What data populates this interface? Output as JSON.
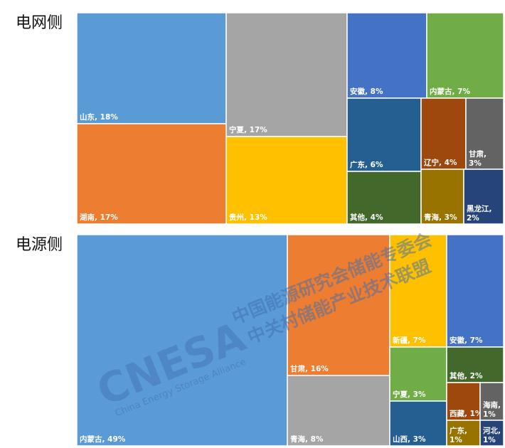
{
  "chart_data": [
    {
      "type": "treemap",
      "title": "电网侧",
      "items": [
        {
          "name": "山东",
          "value": 18,
          "label": "山东, 18%",
          "color": "#5b9bd5"
        },
        {
          "name": "湖南",
          "value": 17,
          "label": "湖南, 17%",
          "color": "#ed7d31"
        },
        {
          "name": "宁夏",
          "value": 17,
          "label": "宁夏, 17%",
          "color": "#a5a5a5"
        },
        {
          "name": "贵州",
          "value": 13,
          "label": "贵州, 13%",
          "color": "#ffc000"
        },
        {
          "name": "安徽",
          "value": 8,
          "label": "安徽, 8%",
          "color": "#4472c4"
        },
        {
          "name": "内蒙古",
          "value": 7,
          "label": "内蒙古, 7%",
          "color": "#70ad47"
        },
        {
          "name": "广东",
          "value": 6,
          "label": "广东, 6%",
          "color": "#255e91"
        },
        {
          "name": "其他",
          "value": 4,
          "label": "其他, 4%",
          "color": "#43682b"
        },
        {
          "name": "辽宁",
          "value": 4,
          "label": "辽宁, 4%",
          "color": "#9e480e"
        },
        {
          "name": "甘肃",
          "value": 3,
          "label": "甘肃, 3%",
          "color": "#636363"
        },
        {
          "name": "青海",
          "value": 3,
          "label": "青海, 3%",
          "color": "#997300"
        },
        {
          "name": "黑龙江",
          "value": 2,
          "label": "黑龙江, 2%",
          "color": "#264478"
        }
      ]
    },
    {
      "type": "treemap",
      "title": "电源侧",
      "items": [
        {
          "name": "内蒙古",
          "value": 49,
          "label": "内蒙古, 49%",
          "color": "#5b9bd5"
        },
        {
          "name": "甘肃",
          "value": 16,
          "label": "甘肃, 16%",
          "color": "#ed7d31"
        },
        {
          "name": "青海",
          "value": 8,
          "label": "青海, 8%",
          "color": "#a5a5a5"
        },
        {
          "name": "新疆",
          "value": 7,
          "label": "新疆, 7%",
          "color": "#ffc000"
        },
        {
          "name": "安徽",
          "value": 7,
          "label": "安徽, 7%",
          "color": "#4472c4"
        },
        {
          "name": "宁夏",
          "value": 3,
          "label": "宁夏, 3%",
          "color": "#70ad47"
        },
        {
          "name": "山西",
          "value": 3,
          "label": "山西, 3%",
          "color": "#255e91"
        },
        {
          "name": "其他",
          "value": 2,
          "label": "其他, 2%",
          "color": "#43682b"
        },
        {
          "name": "西藏",
          "value": 1,
          "label": "西藏, 1%",
          "color": "#9e480e"
        },
        {
          "name": "海南",
          "value": 1,
          "label": "海南, 1%",
          "color": "#636363"
        },
        {
          "name": "广东",
          "value": 1,
          "label": "广东, 1%",
          "color": "#997300"
        },
        {
          "name": "河北",
          "value": 1,
          "label": "河北, 1%",
          "color": "#264478"
        }
      ]
    }
  ],
  "watermark": {
    "logo": "CNESA",
    "subtitle": "China Energy Storage Alliance",
    "line1": "中国能源研究会储能专委会",
    "line2": "中关村储能产业技术联盟"
  }
}
